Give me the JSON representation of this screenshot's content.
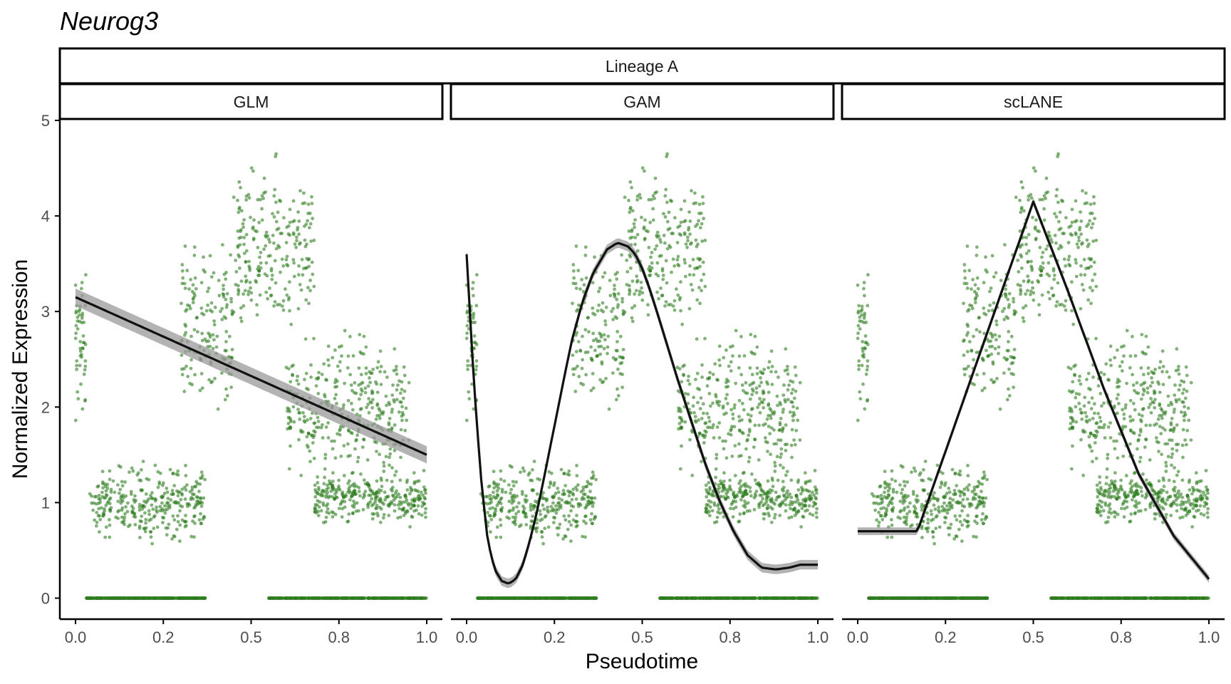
{
  "chart_data": {
    "type": "scatter",
    "title": "Neurog3",
    "facet_top": "Lineage A",
    "xlabel": "Pseudotime",
    "ylabel": "Normalized Expression",
    "xlim": [
      0,
      1
    ],
    "ylim": [
      -0.22,
      5
    ],
    "x_ticks": [
      0.0,
      0.25,
      0.5,
      0.75,
      1.0
    ],
    "x_tick_labels": [
      "0.0",
      "0.2",
      "0.5",
      "0.8",
      "1.0"
    ],
    "y_ticks": [
      0,
      1,
      2,
      3,
      4,
      5
    ],
    "y_tick_labels": [
      "0",
      "1",
      "2",
      "3",
      "4",
      "5"
    ],
    "grid": false,
    "point_color": "#2e7d1f",
    "line_color": "#111111",
    "band_color": "#9a9a9a",
    "point_clusters": [
      {
        "desc": "zero-expression cells",
        "x_range": [
          0.03,
          0.37
        ],
        "y": 0
      },
      {
        "desc": "zero-expression cells",
        "x_range": [
          0.55,
          1.0
        ],
        "y": 0
      },
      {
        "desc": "early high cells",
        "x_range": [
          0.0,
          0.03
        ],
        "y_range": [
          1.5,
          3.8
        ]
      },
      {
        "desc": "early low plateau",
        "x_range": [
          0.04,
          0.37
        ],
        "y_range": [
          0.5,
          1.5
        ]
      },
      {
        "desc": "rising cells",
        "x_range": [
          0.3,
          0.45
        ],
        "y_range": [
          1.5,
          4.0
        ]
      },
      {
        "desc": "peak cells",
        "x_range": [
          0.45,
          0.68
        ],
        "y_range": [
          2.5,
          4.8
        ]
      },
      {
        "desc": "declining cells",
        "x_range": [
          0.6,
          0.95
        ],
        "y_range": [
          1.0,
          3.0
        ]
      },
      {
        "desc": "late plateau",
        "x_range": [
          0.68,
          1.0
        ],
        "y_range": [
          0.7,
          1.4
        ]
      }
    ],
    "panels": [
      {
        "name": "GLM",
        "fit": {
          "x": [
            0.0,
            1.0
          ],
          "y": [
            3.15,
            1.5
          ]
        },
        "band_halfwidth": 0.09
      },
      {
        "name": "GAM",
        "fit": {
          "x": [
            0.0,
            0.02,
            0.04,
            0.06,
            0.08,
            0.1,
            0.12,
            0.14,
            0.16,
            0.18,
            0.2,
            0.22,
            0.25,
            0.28,
            0.3,
            0.33,
            0.36,
            0.4,
            0.43,
            0.46,
            0.48,
            0.5,
            0.52,
            0.54,
            0.56,
            0.6,
            0.64,
            0.68,
            0.72,
            0.76,
            0.8,
            0.84,
            0.88,
            0.92,
            0.95,
            0.98,
            1.0
          ],
          "y": [
            3.6,
            2.3,
            1.3,
            0.6,
            0.3,
            0.18,
            0.15,
            0.2,
            0.35,
            0.6,
            0.9,
            1.25,
            1.8,
            2.35,
            2.7,
            3.1,
            3.4,
            3.65,
            3.72,
            3.68,
            3.6,
            3.45,
            3.25,
            3.02,
            2.78,
            2.3,
            1.85,
            1.4,
            1.02,
            0.7,
            0.45,
            0.32,
            0.3,
            0.32,
            0.35,
            0.35,
            0.35
          ]
        },
        "band_halfwidth": 0.05
      },
      {
        "name": "scLANE",
        "fit": {
          "x": [
            0.0,
            0.17,
            0.5,
            0.6,
            0.7,
            0.8,
            0.9,
            1.0
          ],
          "y": [
            0.7,
            0.7,
            4.15,
            3.2,
            2.2,
            1.3,
            0.65,
            0.2
          ]
        },
        "band_halfwidth": 0.04
      }
    ]
  }
}
